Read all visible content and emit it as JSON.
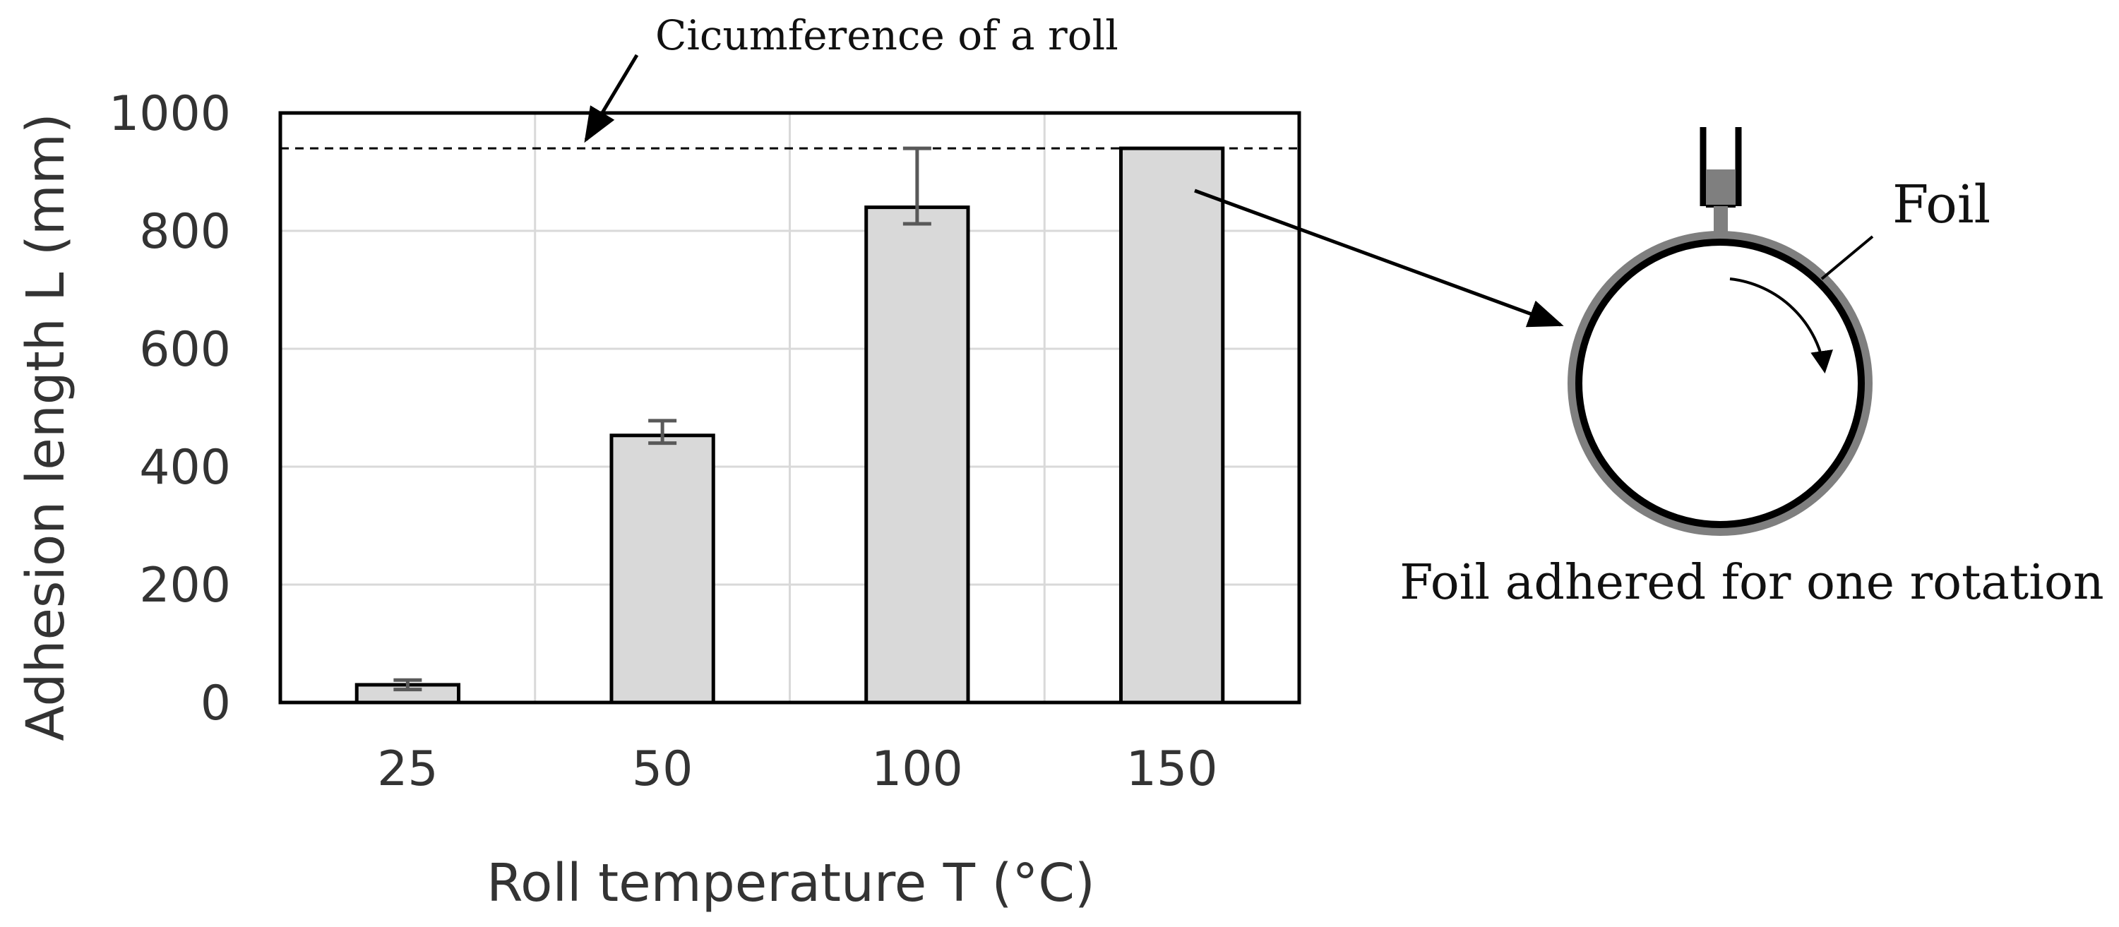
{
  "chart_data": {
    "type": "bar",
    "categories": [
      "25",
      "50",
      "100",
      "150"
    ],
    "values": [
      30,
      453,
      840,
      940
    ],
    "error_bars": [
      {
        "low": 22,
        "high": 38
      },
      {
        "low": 440,
        "high": 478
      },
      {
        "low": 812,
        "high": 940
      },
      {
        "low": 940,
        "high": 940
      }
    ],
    "xlabel": "Roll temperature T (°C)",
    "ylabel": "Adhesion length L (mm)",
    "ylim": [
      0,
      1000
    ],
    "yticks": [
      "0",
      "200",
      "400",
      "600",
      "800",
      "1000"
    ],
    "grid": true,
    "reference_line": {
      "value": 940,
      "style": "dashed",
      "label": "Cicumference of a roll"
    },
    "colors": {
      "bar_fill": "#d9d9d9",
      "bar_edge": "#000000",
      "error_bar": "#595959",
      "grid": "#d9d9d9",
      "roll_ring": "#7f7f7f"
    }
  },
  "annotations": {
    "circumference_label": "Cicumference of a roll",
    "foil_label": "Foil",
    "caption": "Foil adhered for one rotation"
  }
}
